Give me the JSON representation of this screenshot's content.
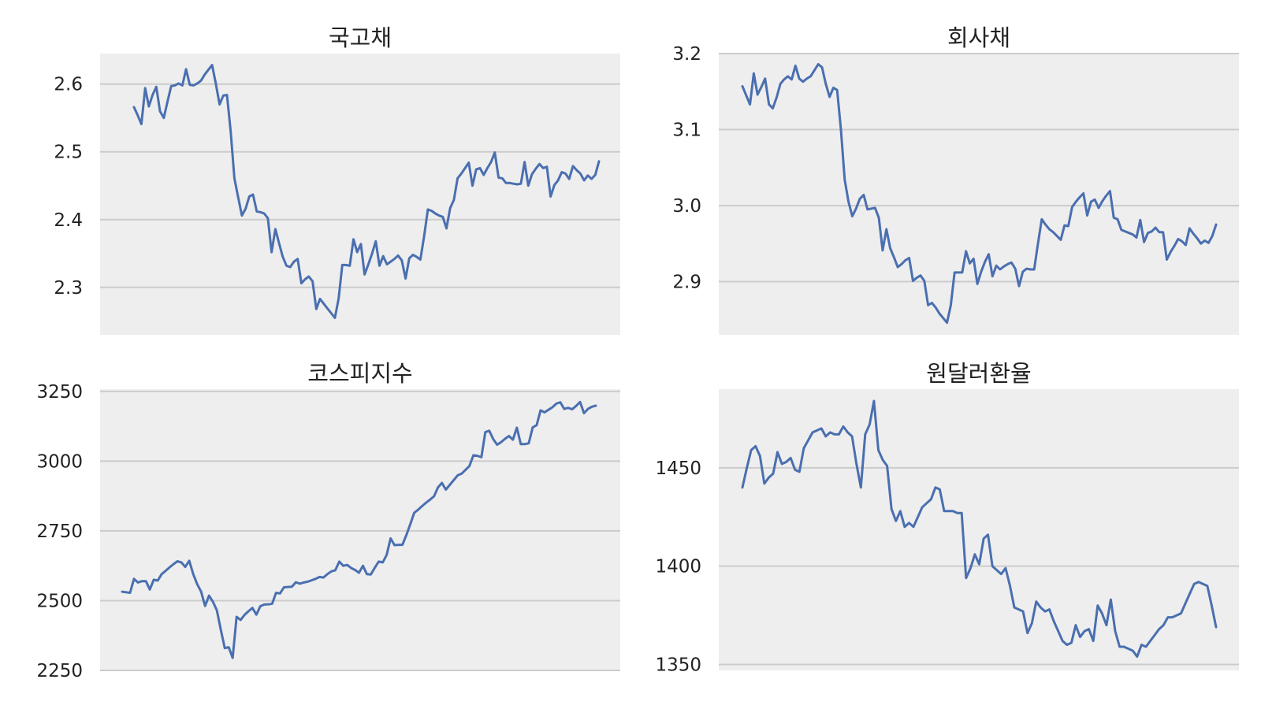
{
  "colors": {
    "line": "#4a6fb0",
    "plot_background": "#eeeeee",
    "grid": "#cccccc"
  },
  "chart_data": [
    {
      "type": "line",
      "title": "국고채",
      "xlabel": "",
      "ylabel": "",
      "ylim": [
        2.23,
        2.645
      ],
      "yticks": [
        2.3,
        2.4,
        2.5,
        2.6
      ],
      "ytick_labels": [
        "2.3",
        "2.4",
        "2.5",
        "2.6"
      ],
      "grid": true,
      "series": [
        {
          "values": [
            2.566,
            2.554,
            2.541,
            2.594,
            2.567,
            2.584,
            2.596,
            2.56,
            2.55,
            2.574,
            2.597,
            2.598,
            2.601,
            2.598,
            2.622,
            2.599,
            2.598,
            2.601,
            2.605,
            2.614,
            2.621,
            2.628,
            2.601,
            2.57,
            2.583,
            2.584,
            2.53,
            2.461,
            2.433,
            2.406,
            2.416,
            2.434,
            2.437,
            2.412,
            2.411,
            2.409,
            2.402,
            2.352,
            2.386,
            2.365,
            2.345,
            2.332,
            2.33,
            2.338,
            2.342,
            2.306,
            2.312,
            2.316,
            2.309,
            2.268,
            2.283,
            2.276,
            2.269,
            2.262,
            2.255,
            2.283,
            2.333,
            2.333,
            2.332,
            2.371,
            2.352,
            2.364,
            2.319,
            2.334,
            2.35,
            2.368,
            2.332,
            2.346,
            2.334,
            2.338,
            2.342,
            2.347,
            2.34,
            2.313,
            2.343,
            2.348,
            2.345,
            2.341,
            2.376,
            2.415,
            2.413,
            2.409,
            2.406,
            2.404,
            2.387,
            2.417,
            2.429,
            2.461,
            2.468,
            2.476,
            2.484,
            2.45,
            2.474,
            2.476,
            2.466,
            2.476,
            2.485,
            2.499,
            2.462,
            2.461,
            2.454,
            2.454,
            2.453,
            2.452,
            2.453,
            2.485,
            2.45,
            2.467,
            2.475,
            2.482,
            2.476,
            2.478,
            2.434,
            2.451,
            2.458,
            2.47,
            2.468,
            2.46,
            2.479,
            2.473,
            2.468,
            2.458,
            2.465,
            2.46,
            2.466,
            2.486
          ]
        }
      ]
    },
    {
      "type": "line",
      "title": "회사채",
      "xlabel": "",
      "ylabel": "",
      "ylim": [
        2.83,
        3.2
      ],
      "yticks": [
        2.9,
        3.0,
        3.1,
        3.2
      ],
      "ytick_labels": [
        "2.9",
        "3.0",
        "3.1",
        "3.2"
      ],
      "grid": true,
      "series": [
        {
          "values": [
            3.157,
            3.145,
            3.133,
            3.174,
            3.146,
            3.156,
            3.167,
            3.133,
            3.128,
            3.142,
            3.16,
            3.166,
            3.17,
            3.166,
            3.184,
            3.167,
            3.163,
            3.167,
            3.17,
            3.178,
            3.186,
            3.182,
            3.16,
            3.143,
            3.155,
            3.152,
            3.1,
            3.034,
            3.005,
            2.986,
            2.996,
            3.009,
            3.014,
            2.995,
            2.996,
            2.997,
            2.984,
            2.941,
            2.969,
            2.944,
            2.932,
            2.919,
            2.923,
            2.928,
            2.931,
            2.901,
            2.905,
            2.908,
            2.901,
            2.869,
            2.872,
            2.866,
            2.858,
            2.852,
            2.846,
            2.869,
            2.912,
            2.912,
            2.912,
            2.94,
            2.924,
            2.93,
            2.897,
            2.913,
            2.926,
            2.936,
            2.907,
            2.921,
            2.916,
            2.92,
            2.923,
            2.925,
            2.917,
            2.894,
            2.913,
            2.917,
            2.916,
            2.916,
            2.95,
            2.982,
            2.975,
            2.969,
            2.965,
            2.96,
            2.955,
            2.974,
            2.973,
            2.998,
            3.005,
            3.011,
            3.016,
            2.987,
            3.005,
            3.008,
            2.997,
            3.006,
            3.013,
            3.019,
            2.984,
            2.982,
            2.968,
            2.966,
            2.964,
            2.962,
            2.958,
            2.981,
            2.952,
            2.964,
            2.966,
            2.971,
            2.965,
            2.965,
            2.929,
            2.939,
            2.947,
            2.956,
            2.953,
            2.948,
            2.97,
            2.963,
            2.957,
            2.95,
            2.954,
            2.951,
            2.96,
            2.975
          ]
        }
      ]
    },
    {
      "type": "line",
      "title": "코스피지수",
      "xlabel": "",
      "ylabel": "",
      "ylim": [
        2250,
        3258
      ],
      "yticks": [
        2250,
        2500,
        2750,
        3000,
        3250
      ],
      "ytick_labels": [
        "2250",
        "2500",
        "2750",
        "3000",
        "3250"
      ],
      "grid": true,
      "series": [
        {
          "values": [
            2532,
            2530,
            2528,
            2578,
            2565,
            2570,
            2570,
            2540,
            2575,
            2572,
            2595,
            2607,
            2619,
            2631,
            2641,
            2637,
            2621,
            2643,
            2595,
            2559,
            2532,
            2481,
            2518,
            2496,
            2465,
            2395,
            2330,
            2333,
            2295,
            2442,
            2431,
            2449,
            2462,
            2474,
            2450,
            2480,
            2486,
            2487,
            2489,
            2528,
            2526,
            2548,
            2549,
            2550,
            2566,
            2561,
            2565,
            2568,
            2573,
            2578,
            2585,
            2583,
            2595,
            2605,
            2609,
            2640,
            2625,
            2628,
            2617,
            2610,
            2600,
            2625,
            2595,
            2594,
            2618,
            2640,
            2637,
            2664,
            2723,
            2699,
            2700,
            2700,
            2735,
            2774,
            2815,
            2826,
            2839,
            2851,
            2862,
            2874,
            2906,
            2922,
            2898,
            2915,
            2932,
            2949,
            2955,
            2969,
            2983,
            3021,
            3019,
            3014,
            3104,
            3109,
            3079,
            3059,
            3068,
            3080,
            3090,
            3077,
            3120,
            3061,
            3061,
            3064,
            3121,
            3129,
            3182,
            3175,
            3184,
            3193,
            3206,
            3211,
            3187,
            3191,
            3186,
            3198,
            3212,
            3172,
            3187,
            3195,
            3199
          ]
        }
      ]
    },
    {
      "type": "line",
      "title": "원달러환율",
      "xlabel": "",
      "ylabel": "",
      "ylim": [
        1347,
        1490
      ],
      "yticks": [
        1350,
        1400,
        1450
      ],
      "ytick_labels": [
        "1350",
        "1400",
        "1450"
      ],
      "grid": true,
      "series": [
        {
          "values": [
            1440,
            1450,
            1459,
            1461,
            1456,
            1442,
            1445,
            1447,
            1458,
            1452,
            1453,
            1455,
            1449,
            1448,
            1460,
            1464,
            1468,
            1469,
            1470,
            1466,
            1468,
            1467,
            1467,
            1471,
            1468,
            1466,
            1452,
            1440,
            1467,
            1472,
            1484,
            1459,
            1454,
            1451,
            1429,
            1423,
            1428,
            1420,
            1422,
            1420,
            1425,
            1430,
            1432,
            1434,
            1440,
            1439,
            1428,
            1428,
            1428,
            1427,
            1427,
            1394,
            1399,
            1406,
            1401,
            1414,
            1416,
            1400,
            1398,
            1396,
            1399,
            1390,
            1379,
            1378,
            1377,
            1366,
            1371,
            1382,
            1379,
            1377,
            1378,
            1372,
            1367,
            1362,
            1360,
            1361,
            1370,
            1364,
            1367,
            1368,
            1362,
            1380,
            1376,
            1370,
            1383,
            1367,
            1359,
            1359,
            1358,
            1357,
            1354,
            1360,
            1359,
            1362,
            1365,
            1368,
            1370,
            1374,
            1374,
            1375,
            1376,
            1381,
            1386,
            1391,
            1392,
            1391,
            1390,
            1380,
            1369
          ]
        }
      ]
    }
  ]
}
